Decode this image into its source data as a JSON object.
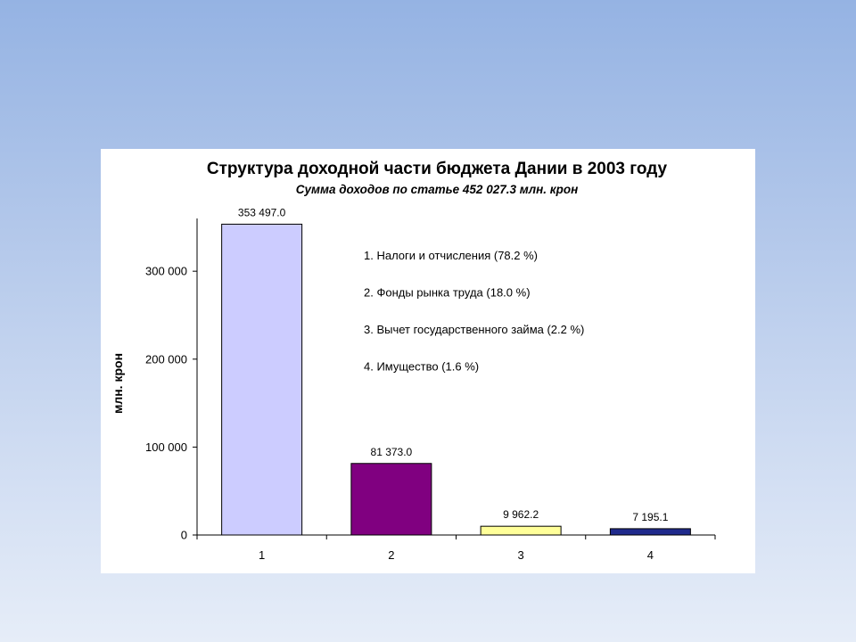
{
  "chart_data": {
    "type": "bar",
    "title": "Структура доходной части бюджета Дании в 2003 году",
    "subtitle": "Сумма доходов по статье 452 027.3  млн. крон",
    "xlabel": "",
    "ylabel": "млн. крон",
    "ylim": [
      0,
      350000
    ],
    "ytick_values": [
      0,
      100000,
      200000,
      300000
    ],
    "ytick_labels": [
      "0",
      "100 000",
      "200 000",
      "300 000"
    ],
    "categories": [
      "1",
      "2",
      "3",
      "4"
    ],
    "values": [
      353497.0,
      81373.0,
      9962.2,
      7195.1
    ],
    "data_labels": [
      "353 497.0",
      "81 373.0",
      "9 962.2",
      "7 195.1"
    ],
    "colors": [
      "#ccccff",
      "#800080",
      "#ffff99",
      "#1f2a8c"
    ],
    "grid": false,
    "annotations": [
      "1. Налоги и отчисления (78.2 %)",
      "2.  Фонды рынка труда (18.0 %)",
      "3. Вычет государственного займа (2.2 %)",
      "4. Имущество (1.6 %)"
    ]
  }
}
